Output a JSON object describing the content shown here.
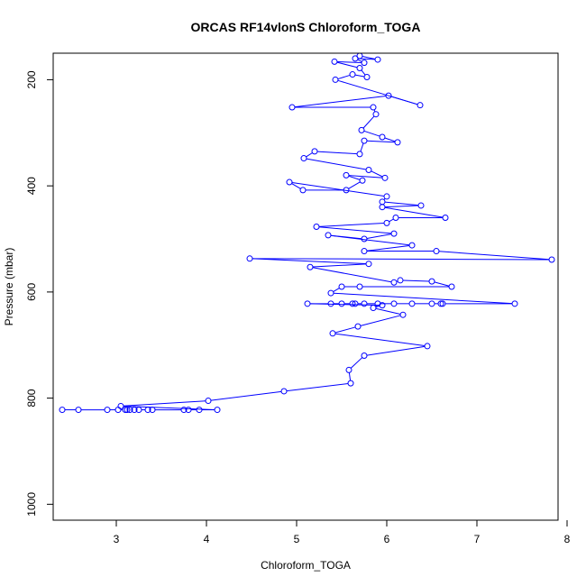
{
  "chart_data": {
    "type": "line",
    "title": "ORCAS RF14vlonS Chloroform_TOGA",
    "xlabel": "Chloroform_TOGA",
    "ylabel": "Pressure (mbar)",
    "xlim": [
      2.3,
      7.9
    ],
    "ylim": [
      1030,
      150
    ],
    "y_inverted": true,
    "x_ticks": [
      3,
      4,
      5,
      6,
      7,
      8
    ],
    "y_ticks": [
      200,
      400,
      600,
      800,
      1000
    ],
    "series_color": "#0000ff",
    "grid": false,
    "legend": "none",
    "series": [
      {
        "points": [
          [
            2.4,
            822
          ],
          [
            2.58,
            822
          ],
          [
            2.9,
            822
          ],
          [
            3.02,
            822
          ],
          [
            3.1,
            822
          ],
          [
            3.12,
            822
          ],
          [
            3.15,
            822
          ],
          [
            3.2,
            822
          ],
          [
            3.25,
            822
          ],
          [
            3.35,
            822
          ],
          [
            3.4,
            822
          ],
          [
            3.75,
            822
          ],
          [
            3.8,
            822
          ],
          [
            3.92,
            822
          ],
          [
            4.12,
            822
          ],
          [
            3.05,
            815
          ],
          [
            4.02,
            805
          ],
          [
            4.86,
            787
          ],
          [
            5.6,
            772
          ],
          [
            5.58,
            747
          ],
          [
            5.75,
            720
          ],
          [
            6.45,
            702
          ],
          [
            5.4,
            678
          ],
          [
            5.68,
            665
          ],
          [
            6.18,
            643
          ],
          [
            5.85,
            630
          ],
          [
            5.95,
            625
          ],
          [
            5.12,
            622
          ],
          [
            5.38,
            622
          ],
          [
            5.5,
            622
          ],
          [
            5.62,
            622
          ],
          [
            5.65,
            622
          ],
          [
            5.75,
            622
          ],
          [
            5.9,
            622
          ],
          [
            6.08,
            622
          ],
          [
            6.28,
            622
          ],
          [
            6.5,
            622
          ],
          [
            6.6,
            622
          ],
          [
            6.62,
            622
          ],
          [
            7.42,
            622
          ],
          [
            5.38,
            602
          ],
          [
            5.5,
            590
          ],
          [
            5.7,
            590
          ],
          [
            6.72,
            590
          ],
          [
            6.5,
            580
          ],
          [
            6.15,
            578
          ],
          [
            6.08,
            582
          ],
          [
            5.15,
            553
          ],
          [
            5.8,
            547
          ],
          [
            4.48,
            537
          ],
          [
            7.83,
            539
          ],
          [
            6.55,
            523
          ],
          [
            5.75,
            523
          ],
          [
            6.28,
            512
          ],
          [
            5.35,
            493
          ],
          [
            5.75,
            500
          ],
          [
            6.08,
            490
          ],
          [
            5.22,
            477
          ],
          [
            6.0,
            470
          ],
          [
            6.1,
            460
          ],
          [
            6.65,
            460
          ],
          [
            5.95,
            440
          ],
          [
            6.38,
            437
          ],
          [
            5.95,
            430
          ],
          [
            6.0,
            420
          ],
          [
            4.92,
            393
          ],
          [
            5.07,
            408
          ],
          [
            5.55,
            408
          ],
          [
            5.73,
            390
          ],
          [
            5.55,
            380
          ],
          [
            5.98,
            385
          ],
          [
            5.8,
            370
          ],
          [
            5.08,
            348
          ],
          [
            5.2,
            335
          ],
          [
            5.7,
            340
          ],
          [
            5.75,
            315
          ],
          [
            6.12,
            318
          ],
          [
            5.95,
            308
          ],
          [
            5.72,
            295
          ],
          [
            5.88,
            265
          ],
          [
            5.85,
            252
          ],
          [
            4.95,
            252
          ],
          [
            6.02,
            230
          ],
          [
            6.37,
            248
          ],
          [
            5.43,
            200
          ],
          [
            5.62,
            190
          ],
          [
            5.78,
            195
          ],
          [
            5.7,
            178
          ],
          [
            5.42,
            166
          ],
          [
            5.75,
            168
          ],
          [
            5.65,
            160
          ],
          [
            5.9,
            162
          ],
          [
            5.7,
            155
          ]
        ]
      }
    ]
  }
}
